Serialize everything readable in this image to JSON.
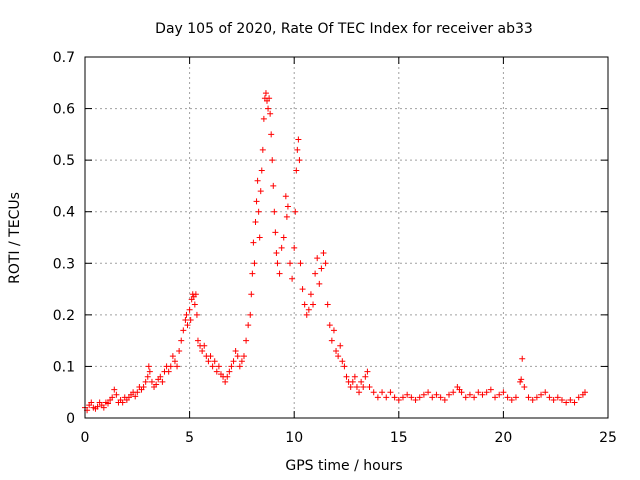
{
  "chart_data": {
    "type": "scatter",
    "title": "Day 105 of 2020, Rate Of TEC Index for receiver ab33",
    "xlabel": "GPS time / hours",
    "ylabel": "ROTI / TECUs",
    "xlim": [
      0,
      25
    ],
    "ylim": [
      0,
      0.7
    ],
    "xticks": [
      0,
      5,
      10,
      15,
      20,
      25
    ],
    "xtick_labels": [
      "0",
      "5",
      "10",
      "15",
      "20",
      "25"
    ],
    "yticks": [
      0,
      0.1,
      0.2,
      0.3,
      0.4,
      0.5,
      0.6,
      0.7
    ],
    "ytick_labels": [
      "0",
      "0.1",
      "0.2",
      "0.3",
      "0.4",
      "0.5",
      "0.6",
      "0.7"
    ],
    "grid": true,
    "marker": "plus",
    "color": "#ff0000",
    "series": [
      {
        "points": [
          [
            0.0,
            0.02
          ],
          [
            0.1,
            0.015
          ],
          [
            0.2,
            0.025
          ],
          [
            0.3,
            0.03
          ],
          [
            0.4,
            0.02
          ],
          [
            0.5,
            0.018
          ],
          [
            0.6,
            0.022
          ],
          [
            0.7,
            0.03
          ],
          [
            0.8,
            0.025
          ],
          [
            0.9,
            0.02
          ],
          [
            1.0,
            0.03
          ],
          [
            1.1,
            0.028
          ],
          [
            1.2,
            0.035
          ],
          [
            1.3,
            0.04
          ],
          [
            1.4,
            0.055
          ],
          [
            1.5,
            0.045
          ],
          [
            1.6,
            0.03
          ],
          [
            1.7,
            0.035
          ],
          [
            1.8,
            0.03
          ],
          [
            1.9,
            0.04
          ],
          [
            2.0,
            0.035
          ],
          [
            2.1,
            0.04
          ],
          [
            2.2,
            0.045
          ],
          [
            2.3,
            0.05
          ],
          [
            2.4,
            0.042
          ],
          [
            2.5,
            0.05
          ],
          [
            2.6,
            0.06
          ],
          [
            2.7,
            0.055
          ],
          [
            2.8,
            0.06
          ],
          [
            2.9,
            0.07
          ],
          [
            3.0,
            0.08
          ],
          [
            3.05,
            0.1
          ],
          [
            3.1,
            0.09
          ],
          [
            3.2,
            0.07
          ],
          [
            3.3,
            0.06
          ],
          [
            3.4,
            0.065
          ],
          [
            3.5,
            0.075
          ],
          [
            3.6,
            0.08
          ],
          [
            3.7,
            0.07
          ],
          [
            3.8,
            0.09
          ],
          [
            3.9,
            0.1
          ],
          [
            4.0,
            0.09
          ],
          [
            4.1,
            0.1
          ],
          [
            4.2,
            0.12
          ],
          [
            4.3,
            0.11
          ],
          [
            4.4,
            0.1
          ],
          [
            4.5,
            0.13
          ],
          [
            4.6,
            0.15
          ],
          [
            4.7,
            0.17
          ],
          [
            4.8,
            0.19
          ],
          [
            4.85,
            0.2
          ],
          [
            4.9,
            0.18
          ],
          [
            5.0,
            0.21
          ],
          [
            5.05,
            0.19
          ],
          [
            5.1,
            0.23
          ],
          [
            5.15,
            0.24
          ],
          [
            5.2,
            0.235
          ],
          [
            5.25,
            0.22
          ],
          [
            5.3,
            0.24
          ],
          [
            5.35,
            0.2
          ],
          [
            5.4,
            0.15
          ],
          [
            5.5,
            0.14
          ],
          [
            5.6,
            0.13
          ],
          [
            5.7,
            0.14
          ],
          [
            5.8,
            0.12
          ],
          [
            5.9,
            0.11
          ],
          [
            6.0,
            0.12
          ],
          [
            6.1,
            0.1
          ],
          [
            6.2,
            0.11
          ],
          [
            6.3,
            0.09
          ],
          [
            6.4,
            0.1
          ],
          [
            6.5,
            0.085
          ],
          [
            6.6,
            0.08
          ],
          [
            6.7,
            0.07
          ],
          [
            6.8,
            0.08
          ],
          [
            6.9,
            0.09
          ],
          [
            7.0,
            0.1
          ],
          [
            7.1,
            0.11
          ],
          [
            7.2,
            0.13
          ],
          [
            7.3,
            0.12
          ],
          [
            7.4,
            0.1
          ],
          [
            7.5,
            0.11
          ],
          [
            7.6,
            0.12
          ],
          [
            7.7,
            0.15
          ],
          [
            7.8,
            0.18
          ],
          [
            7.9,
            0.2
          ],
          [
            7.95,
            0.24
          ],
          [
            8.0,
            0.28
          ],
          [
            8.05,
            0.34
          ],
          [
            8.1,
            0.3
          ],
          [
            8.15,
            0.38
          ],
          [
            8.2,
            0.42
          ],
          [
            8.25,
            0.46
          ],
          [
            8.3,
            0.4
          ],
          [
            8.35,
            0.35
          ],
          [
            8.4,
            0.44
          ],
          [
            8.45,
            0.48
          ],
          [
            8.5,
            0.52
          ],
          [
            8.55,
            0.58
          ],
          [
            8.6,
            0.62
          ],
          [
            8.65,
            0.63
          ],
          [
            8.7,
            0.615
          ],
          [
            8.75,
            0.6
          ],
          [
            8.8,
            0.62
          ],
          [
            8.85,
            0.59
          ],
          [
            8.9,
            0.55
          ],
          [
            8.95,
            0.5
          ],
          [
            9.0,
            0.45
          ],
          [
            9.05,
            0.4
          ],
          [
            9.1,
            0.36
          ],
          [
            9.15,
            0.32
          ],
          [
            9.2,
            0.3
          ],
          [
            9.3,
            0.28
          ],
          [
            9.4,
            0.33
          ],
          [
            9.5,
            0.35
          ],
          [
            9.6,
            0.43
          ],
          [
            9.65,
            0.39
          ],
          [
            9.7,
            0.41
          ],
          [
            9.8,
            0.3
          ],
          [
            9.9,
            0.27
          ],
          [
            10.0,
            0.33
          ],
          [
            10.05,
            0.4
          ],
          [
            10.1,
            0.48
          ],
          [
            10.15,
            0.52
          ],
          [
            10.2,
            0.54
          ],
          [
            10.25,
            0.5
          ],
          [
            10.3,
            0.3
          ],
          [
            10.4,
            0.25
          ],
          [
            10.5,
            0.22
          ],
          [
            10.6,
            0.2
          ],
          [
            10.7,
            0.21
          ],
          [
            10.8,
            0.24
          ],
          [
            10.9,
            0.22
          ],
          [
            11.0,
            0.28
          ],
          [
            11.1,
            0.31
          ],
          [
            11.2,
            0.26
          ],
          [
            11.3,
            0.29
          ],
          [
            11.4,
            0.32
          ],
          [
            11.5,
            0.3
          ],
          [
            11.6,
            0.22
          ],
          [
            11.7,
            0.18
          ],
          [
            11.8,
            0.15
          ],
          [
            11.9,
            0.17
          ],
          [
            12.0,
            0.13
          ],
          [
            12.1,
            0.12
          ],
          [
            12.2,
            0.14
          ],
          [
            12.3,
            0.11
          ],
          [
            12.4,
            0.1
          ],
          [
            12.5,
            0.08
          ],
          [
            12.6,
            0.07
          ],
          [
            12.7,
            0.06
          ],
          [
            12.8,
            0.07
          ],
          [
            12.9,
            0.08
          ],
          [
            13.0,
            0.06
          ],
          [
            13.1,
            0.05
          ],
          [
            13.2,
            0.07
          ],
          [
            13.3,
            0.06
          ],
          [
            13.4,
            0.08
          ],
          [
            13.5,
            0.09
          ],
          [
            13.6,
            0.06
          ],
          [
            13.8,
            0.05
          ],
          [
            14.0,
            0.04
          ],
          [
            14.2,
            0.05
          ],
          [
            14.4,
            0.04
          ],
          [
            14.6,
            0.05
          ],
          [
            14.8,
            0.04
          ],
          [
            15.0,
            0.035
          ],
          [
            15.2,
            0.04
          ],
          [
            15.4,
            0.045
          ],
          [
            15.6,
            0.04
          ],
          [
            15.8,
            0.035
          ],
          [
            16.0,
            0.04
          ],
          [
            16.2,
            0.045
          ],
          [
            16.4,
            0.05
          ],
          [
            16.6,
            0.04
          ],
          [
            16.8,
            0.045
          ],
          [
            17.0,
            0.04
          ],
          [
            17.2,
            0.035
          ],
          [
            17.4,
            0.045
          ],
          [
            17.6,
            0.05
          ],
          [
            17.8,
            0.06
          ],
          [
            17.9,
            0.055
          ],
          [
            18.0,
            0.05
          ],
          [
            18.2,
            0.04
          ],
          [
            18.4,
            0.045
          ],
          [
            18.6,
            0.04
          ],
          [
            18.8,
            0.05
          ],
          [
            19.0,
            0.045
          ],
          [
            19.2,
            0.05
          ],
          [
            19.4,
            0.055
          ],
          [
            19.6,
            0.04
          ],
          [
            19.8,
            0.045
          ],
          [
            20.0,
            0.05
          ],
          [
            20.2,
            0.04
          ],
          [
            20.4,
            0.035
          ],
          [
            20.6,
            0.04
          ],
          [
            20.8,
            0.07
          ],
          [
            20.85,
            0.075
          ],
          [
            20.9,
            0.115
          ],
          [
            21.0,
            0.06
          ],
          [
            21.2,
            0.04
          ],
          [
            21.4,
            0.035
          ],
          [
            21.6,
            0.04
          ],
          [
            21.8,
            0.045
          ],
          [
            22.0,
            0.05
          ],
          [
            22.2,
            0.04
          ],
          [
            22.4,
            0.035
          ],
          [
            22.6,
            0.04
          ],
          [
            22.8,
            0.035
          ],
          [
            23.0,
            0.03
          ],
          [
            23.2,
            0.035
          ],
          [
            23.4,
            0.03
          ],
          [
            23.6,
            0.04
          ],
          [
            23.8,
            0.045
          ],
          [
            23.9,
            0.05
          ]
        ]
      }
    ]
  }
}
